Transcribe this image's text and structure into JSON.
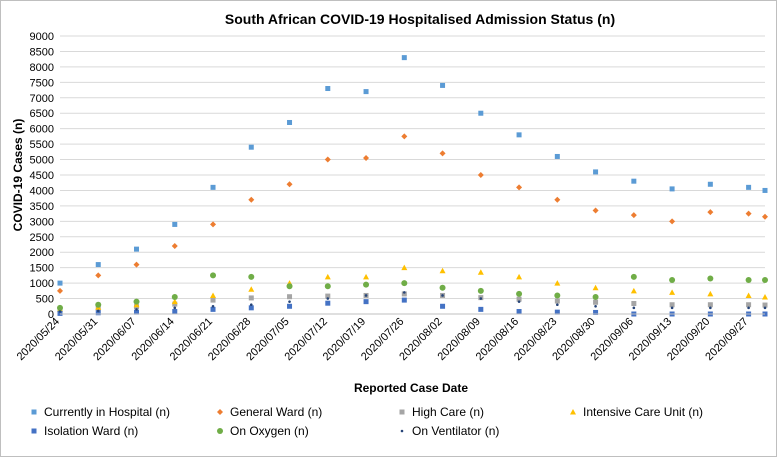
{
  "chart_data": {
    "type": "scatter",
    "title": "South African COVID-19 Hospitalised Admission Status (n)",
    "xlabel": "Reported Case Date",
    "ylabel": "COVID-19 Cases (n)",
    "ylim": [
      0,
      9000
    ],
    "yticks": [
      "0",
      "500",
      "1000",
      "1500",
      "2000",
      "2500",
      "3000",
      "3500",
      "4000",
      "4500",
      "5000",
      "5500",
      "6000",
      "6500",
      "7000",
      "7500",
      "8000",
      "8500",
      "9000"
    ],
    "xtick_labels": [
      "2020/05/24",
      "2020/05/31",
      "2020/06/07",
      "2020/06/14",
      "2020/06/21",
      "2020/06/28",
      "2020/07/05",
      "2020/07/12",
      "2020/07/19",
      "2020/07/26",
      "2020/08/02",
      "2020/08/09",
      "2020/08/16",
      "2020/08/23",
      "2020/08/30",
      "2020/09/06",
      "2020/09/13",
      "2020/09/20",
      "2020/09/27"
    ],
    "day_range": [
      0,
      129
    ],
    "grid": true,
    "legend_position": "bottom",
    "series": [
      {
        "name": "Currently in Hospital (n)",
        "color": "#5b9bd5",
        "marker": "square",
        "points": [
          [
            0,
            1000
          ],
          [
            7,
            1600
          ],
          [
            14,
            2100
          ],
          [
            21,
            2900
          ],
          [
            28,
            4100
          ],
          [
            35,
            5400
          ],
          [
            42,
            6200
          ],
          [
            49,
            7300
          ],
          [
            56,
            7200
          ],
          [
            63,
            8300
          ],
          [
            70,
            7400
          ],
          [
            77,
            6500
          ],
          [
            84,
            5800
          ],
          [
            91,
            5100
          ],
          [
            98,
            4600
          ],
          [
            105,
            4300
          ],
          [
            112,
            4050
          ],
          [
            119,
            4200
          ],
          [
            126,
            4100
          ],
          [
            129,
            4000
          ]
        ]
      },
      {
        "name": "General Ward (n)",
        "color": "#ed7d31",
        "marker": "diamond",
        "points": [
          [
            0,
            750
          ],
          [
            7,
            1250
          ],
          [
            14,
            1600
          ],
          [
            21,
            2200
          ],
          [
            28,
            2900
          ],
          [
            35,
            3700
          ],
          [
            42,
            4200
          ],
          [
            49,
            5000
          ],
          [
            56,
            5050
          ],
          [
            63,
            5750
          ],
          [
            70,
            5200
          ],
          [
            77,
            4500
          ],
          [
            84,
            4100
          ],
          [
            91,
            3700
          ],
          [
            98,
            3350
          ],
          [
            105,
            3200
          ],
          [
            112,
            3000
          ],
          [
            119,
            3300
          ],
          [
            126,
            3250
          ],
          [
            129,
            3150
          ]
        ]
      },
      {
        "name": "High Care (n)",
        "color": "#a5a5a5",
        "marker": "square",
        "points": [
          [
            0,
            120
          ],
          [
            7,
            180
          ],
          [
            14,
            240
          ],
          [
            21,
            320
          ],
          [
            28,
            450
          ],
          [
            35,
            520
          ],
          [
            42,
            560
          ],
          [
            49,
            580
          ],
          [
            56,
            600
          ],
          [
            63,
            650
          ],
          [
            70,
            600
          ],
          [
            77,
            530
          ],
          [
            84,
            480
          ],
          [
            91,
            420
          ],
          [
            98,
            380
          ],
          [
            105,
            340
          ],
          [
            112,
            300
          ],
          [
            119,
            300
          ],
          [
            126,
            300
          ],
          [
            129,
            290
          ]
        ]
      },
      {
        "name": "Intensive Care Unit (n)",
        "color": "#ffc000",
        "marker": "triangle",
        "points": [
          [
            0,
            150
          ],
          [
            7,
            220
          ],
          [
            14,
            300
          ],
          [
            21,
            400
          ],
          [
            28,
            600
          ],
          [
            35,
            800
          ],
          [
            42,
            1000
          ],
          [
            49,
            1200
          ],
          [
            56,
            1200
          ],
          [
            63,
            1500
          ],
          [
            70,
            1400
          ],
          [
            77,
            1350
          ],
          [
            84,
            1200
          ],
          [
            91,
            1000
          ],
          [
            98,
            850
          ],
          [
            105,
            750
          ],
          [
            112,
            700
          ],
          [
            119,
            650
          ],
          [
            126,
            600
          ],
          [
            129,
            550
          ]
        ]
      },
      {
        "name": "Isolation Ward (n)",
        "color": "#4472c4",
        "marker": "square",
        "points": [
          [
            0,
            20
          ],
          [
            7,
            40
          ],
          [
            14,
            60
          ],
          [
            21,
            80
          ],
          [
            28,
            150
          ],
          [
            35,
            200
          ],
          [
            42,
            250
          ],
          [
            49,
            350
          ],
          [
            56,
            400
          ],
          [
            63,
            450
          ],
          [
            70,
            250
          ],
          [
            77,
            150
          ],
          [
            84,
            80
          ],
          [
            91,
            60
          ],
          [
            98,
            50
          ],
          [
            105,
            0
          ],
          [
            112,
            0
          ],
          [
            119,
            0
          ],
          [
            126,
            0
          ],
          [
            129,
            0
          ]
        ]
      },
      {
        "name": "On Oxygen (n)",
        "color": "#70ad47",
        "marker": "circle",
        "points": [
          [
            0,
            200
          ],
          [
            7,
            300
          ],
          [
            14,
            400
          ],
          [
            21,
            550
          ],
          [
            28,
            1250
          ],
          [
            35,
            1200
          ],
          [
            42,
            900
          ],
          [
            49,
            900
          ],
          [
            56,
            950
          ],
          [
            63,
            1000
          ],
          [
            70,
            850
          ],
          [
            77,
            750
          ],
          [
            84,
            650
          ],
          [
            91,
            600
          ],
          [
            98,
            550
          ],
          [
            105,
            1200
          ],
          [
            112,
            1100
          ],
          [
            119,
            1150
          ],
          [
            126,
            1100
          ],
          [
            129,
            1100
          ]
        ]
      },
      {
        "name": "On Ventilator (n)",
        "color": "#264478",
        "marker": "dot",
        "points": [
          [
            0,
            80
          ],
          [
            7,
            100
          ],
          [
            14,
            150
          ],
          [
            21,
            200
          ],
          [
            28,
            250
          ],
          [
            35,
            300
          ],
          [
            42,
            400
          ],
          [
            49,
            500
          ],
          [
            56,
            600
          ],
          [
            63,
            700
          ],
          [
            70,
            600
          ],
          [
            77,
            500
          ],
          [
            84,
            400
          ],
          [
            91,
            300
          ],
          [
            98,
            250
          ],
          [
            105,
            200
          ],
          [
            112,
            200
          ],
          [
            119,
            200
          ],
          [
            126,
            200
          ],
          [
            129,
            200
          ]
        ]
      }
    ]
  }
}
